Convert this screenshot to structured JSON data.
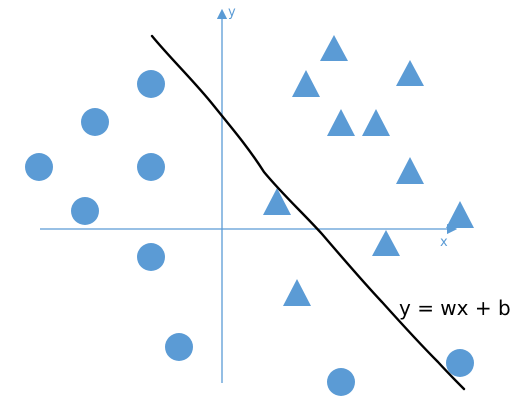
{
  "labels": {
    "x_axis": "x",
    "y_axis": "y",
    "equation": "y = wx + b"
  },
  "colors": {
    "axis": "#5b9bd5",
    "marker": "#5b9bd5",
    "line": "#000000"
  },
  "icons": {
    "circle_class": "circle-marker",
    "triangle_class": "triangle-marker"
  }
}
